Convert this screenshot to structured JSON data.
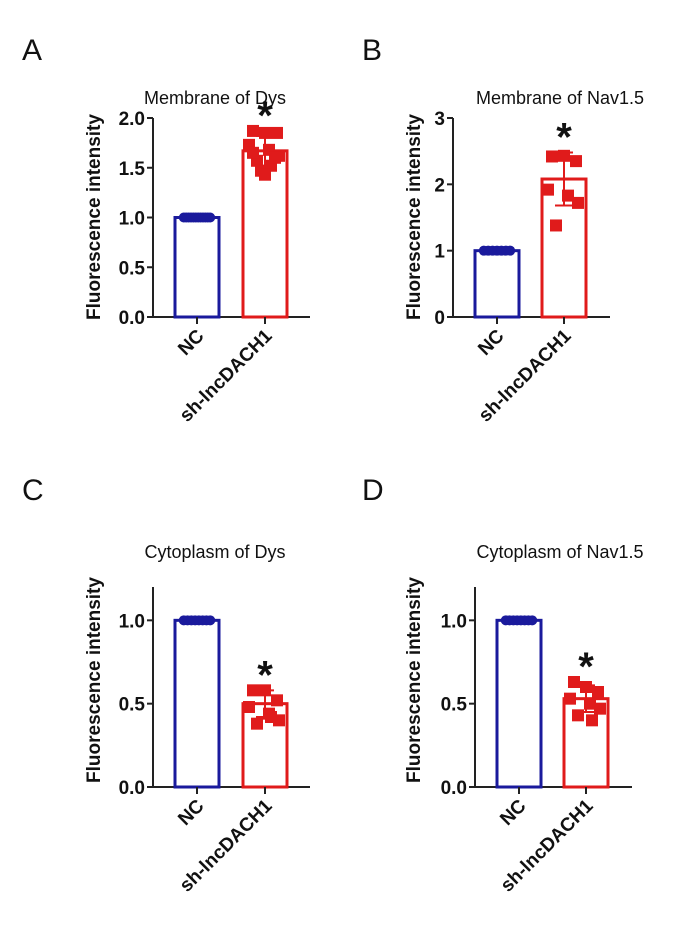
{
  "figure": {
    "panels": [
      "A",
      "B",
      "C",
      "D"
    ]
  },
  "chart_data": [
    {
      "type": "bar",
      "panel": "A",
      "title": "Membrane of Dys",
      "xlabel": "",
      "ylabel": "Fluorescence intensity",
      "ylim": [
        0,
        2.0
      ],
      "yticks": [
        0.0,
        0.5,
        1.0,
        1.5,
        2.0
      ],
      "ytick_labels": [
        "0.0",
        "0.5",
        "1.0",
        "1.5",
        "2.0"
      ],
      "categories": [
        "NC",
        "sh-lncDACH1"
      ],
      "colors": [
        "#1a1a9c",
        "#e01b1b"
      ],
      "values": [
        1.0,
        1.67
      ],
      "error": [
        0.0,
        0.15
      ],
      "points": [
        [
          1.0,
          1.0,
          1.0,
          1.0,
          1.0,
          1.0,
          1.0,
          1.0,
          1.0,
          1.0,
          1.0,
          1.0
        ],
        [
          1.87,
          1.85,
          1.85,
          1.73,
          1.68,
          1.62,
          1.57,
          1.52,
          1.47,
          1.43,
          1.6,
          1.65
        ]
      ],
      "annotation": "*",
      "grid": false
    },
    {
      "type": "bar",
      "panel": "B",
      "title": "Membrane of Nav1.5",
      "xlabel": "",
      "ylabel": "Fluorescence intensity",
      "ylim": [
        0,
        3
      ],
      "yticks": [
        0,
        1,
        2,
        3
      ],
      "ytick_labels": [
        "0",
        "1",
        "2",
        "3"
      ],
      "categories": [
        "NC",
        "sh-lncDACH1"
      ],
      "colors": [
        "#1a1a9c",
        "#e01b1b"
      ],
      "values": [
        1.0,
        2.08
      ],
      "error": [
        0.0,
        0.4
      ],
      "points": [
        [
          1.0,
          1.0,
          1.0,
          1.0,
          1.0,
          1.0,
          1.0
        ],
        [
          2.42,
          2.43,
          2.35,
          1.92,
          1.83,
          1.72,
          1.38
        ]
      ],
      "annotation": "*",
      "grid": false
    },
    {
      "type": "bar",
      "panel": "C",
      "title": "Cytoplasm of Dys",
      "xlabel": "",
      "ylabel": "Fluorescence intensity",
      "ylim": [
        0,
        1.2
      ],
      "yticks": [
        0.0,
        0.5,
        1.0
      ],
      "ytick_labels": [
        "0.0",
        "0.5",
        "1.0"
      ],
      "categories": [
        "NC",
        "sh-lncDACH1"
      ],
      "colors": [
        "#1a1a9c",
        "#e01b1b"
      ],
      "values": [
        1.0,
        0.5
      ],
      "error": [
        0.0,
        0.08
      ],
      "points": [
        [
          1.0,
          1.0,
          1.0,
          1.0,
          1.0,
          1.0,
          1.0,
          1.0
        ],
        [
          0.58,
          0.58,
          0.52,
          0.48,
          0.44,
          0.4,
          0.38,
          0.42
        ]
      ],
      "annotation": "*",
      "grid": false
    },
    {
      "type": "bar",
      "panel": "D",
      "title": "Cytoplasm of Nav1.5",
      "xlabel": "",
      "ylabel": "Fluorescence intensity",
      "ylim": [
        0,
        1.2
      ],
      "yticks": [
        0.0,
        0.5,
        1.0
      ],
      "ytick_labels": [
        "0.0",
        "0.5",
        "1.0"
      ],
      "categories": [
        "NC",
        "sh-lncDACH1"
      ],
      "colors": [
        "#1a1a9c",
        "#e01b1b"
      ],
      "values": [
        1.0,
        0.53
      ],
      "error": [
        0.0,
        0.08
      ],
      "points": [
        [
          1.0,
          1.0,
          1.0,
          1.0,
          1.0,
          1.0,
          1.0,
          1.0
        ],
        [
          0.63,
          0.6,
          0.57,
          0.53,
          0.5,
          0.47,
          0.43,
          0.4
        ]
      ],
      "annotation": "*",
      "grid": false
    }
  ]
}
